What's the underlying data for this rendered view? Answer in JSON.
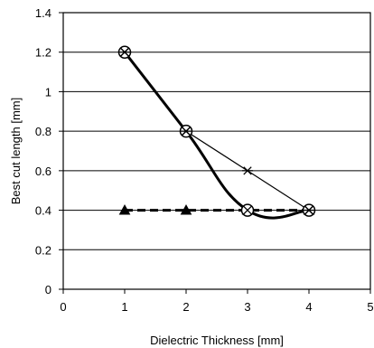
{
  "chart_data": {
    "type": "line",
    "title": "",
    "xlabel": "Dielectric Thickness [mm]",
    "ylabel": "Best cut length [mm]",
    "xlim": [
      0,
      5
    ],
    "ylim": [
      0,
      1.4
    ],
    "x_ticks": [
      "0",
      "1",
      "2",
      "3",
      "4",
      "5"
    ],
    "y_ticks": [
      "0",
      "0.2",
      "0.4",
      "0.6",
      "0.8",
      "1",
      "1.2",
      "1.4"
    ],
    "grid": "horizontal",
    "legend": "none",
    "series": [
      {
        "marker": "star",
        "line_style": "thin-solid",
        "color": "#000000",
        "x": [
          1,
          2,
          3,
          4
        ],
        "y": [
          1.2,
          0.8,
          0.6,
          0.4
        ]
      },
      {
        "marker": "circle-x",
        "line_style": "thick-smooth",
        "color": "#000000",
        "x": [
          1,
          2,
          3,
          4
        ],
        "y": [
          1.2,
          0.8,
          0.4,
          0.4
        ]
      },
      {
        "marker": "triangle",
        "line_style": "thick-dashed",
        "color": "#000000",
        "x": [
          1,
          2,
          3,
          4
        ],
        "y": [
          0.4,
          0.4,
          0.4,
          0.4
        ]
      }
    ]
  }
}
